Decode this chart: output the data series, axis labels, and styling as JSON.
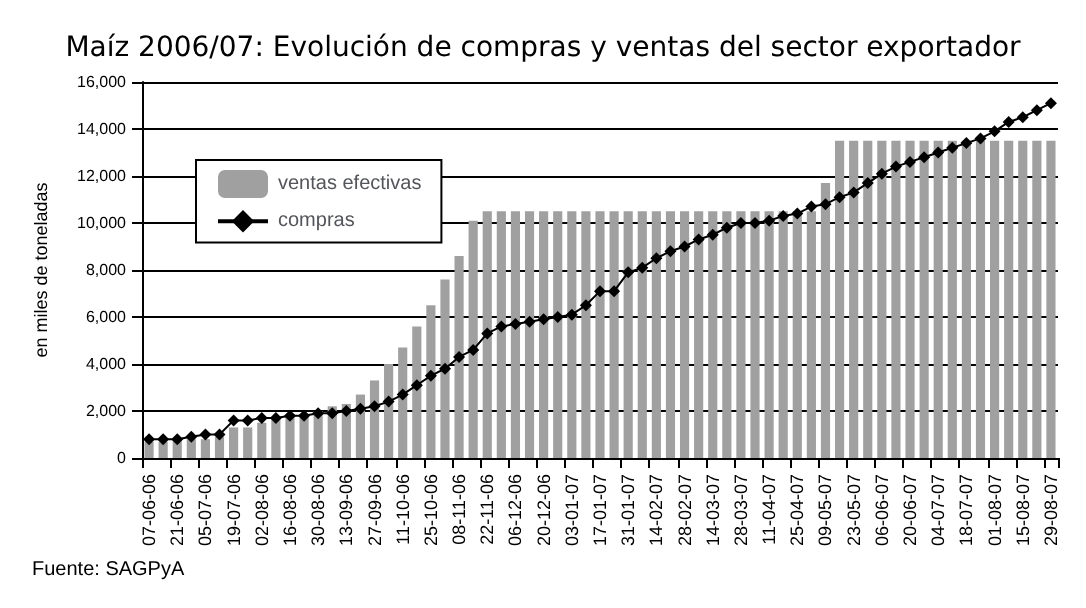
{
  "chart_data": {
    "type": "bar",
    "title": "Maíz 2006/07: Evolución de compras y ventas del sector exportador",
    "ylabel": "en miles de toneladas",
    "annotations": [
      "Fuente: SAGPyA"
    ],
    "categories": [
      "07-06-06",
      null,
      "21-06-06",
      null,
      "05-07-06",
      null,
      "19-07-06",
      null,
      "02-08-06",
      null,
      "16-08-06",
      null,
      "30-08-06",
      null,
      "13-09-06",
      null,
      "27-09-06",
      null,
      "11-10-06",
      null,
      "25-10-06",
      null,
      "08-11-06",
      null,
      "22-11-06",
      null,
      "06-12-06",
      null,
      "20-12-06",
      null,
      "03-01-07",
      null,
      "17-01-07",
      null,
      "31-01-07",
      null,
      "14-02-07",
      null,
      "28-02-07",
      null,
      "14-03-07",
      null,
      "28-03-07",
      null,
      "11-04-07",
      null,
      "25-04-07",
      null,
      "09-05-07",
      null,
      "23-05-07",
      null,
      "06-06-07",
      null,
      "20-06-07",
      null,
      "04-07-07",
      null,
      "18-07-07",
      null,
      "01-08-07",
      null,
      "15-08-07",
      null,
      "29-08-07"
    ],
    "series": [
      {
        "name": "ventas efectivas",
        "color": "#a0a0a0",
        "values": [
          700,
          700,
          800,
          800,
          800,
          900,
          1300,
          1300,
          1500,
          1700,
          1800,
          1800,
          2000,
          2200,
          2300,
          2700,
          3300,
          4000,
          4700,
          5600,
          6500,
          7600,
          8600,
          10100,
          10500,
          10500,
          10500,
          10500,
          10500,
          10500,
          10500,
          10500,
          10500,
          10500,
          10500,
          10500,
          10500,
          10500,
          10500,
          10500,
          10500,
          10500,
          10500,
          10500,
          10500,
          10500,
          10500,
          10500,
          11700,
          13500,
          13500,
          13500,
          13500,
          13500,
          13500,
          13500,
          13500,
          13500,
          13500,
          13500,
          13500,
          13500,
          13500,
          13500,
          13500
        ]
      },
      {
        "name": "compras",
        "type": "line",
        "color": "#000000",
        "marker": "diamond",
        "values": [
          800,
          800,
          800,
          900,
          1000,
          1000,
          1600,
          1600,
          1700,
          1700,
          1800,
          1800,
          1900,
          1900,
          2000,
          2100,
          2200,
          2400,
          2700,
          3100,
          3500,
          3800,
          4300,
          4600,
          5300,
          5600,
          5700,
          5800,
          5900,
          6000,
          6100,
          6500,
          7100,
          7100,
          7900,
          8100,
          8500,
          8800,
          9000,
          9300,
          9500,
          9800,
          10000,
          10000,
          10100,
          10300,
          10400,
          10700,
          10800,
          11100,
          11300,
          11700,
          12100,
          12400,
          12600,
          12800,
          13000,
          13200,
          13400,
          13600,
          13900,
          14300,
          14500,
          14800,
          15100
        ]
      }
    ],
    "ylim": [
      0,
      16000
    ],
    "yticks": [
      {
        "value": 0,
        "label": "0"
      },
      {
        "value": 2000,
        "label": "2,000"
      },
      {
        "value": 4000,
        "label": "4,000"
      },
      {
        "value": 6000,
        "label": "6,000"
      },
      {
        "value": 8000,
        "label": "8,000"
      },
      {
        "value": 10000,
        "label": "10,000"
      },
      {
        "value": 12000,
        "label": "12,000"
      },
      {
        "value": 14000,
        "label": "14,000"
      },
      {
        "value": 16000,
        "label": "16,000"
      }
    ],
    "grid": "y",
    "legend": "top left"
  }
}
